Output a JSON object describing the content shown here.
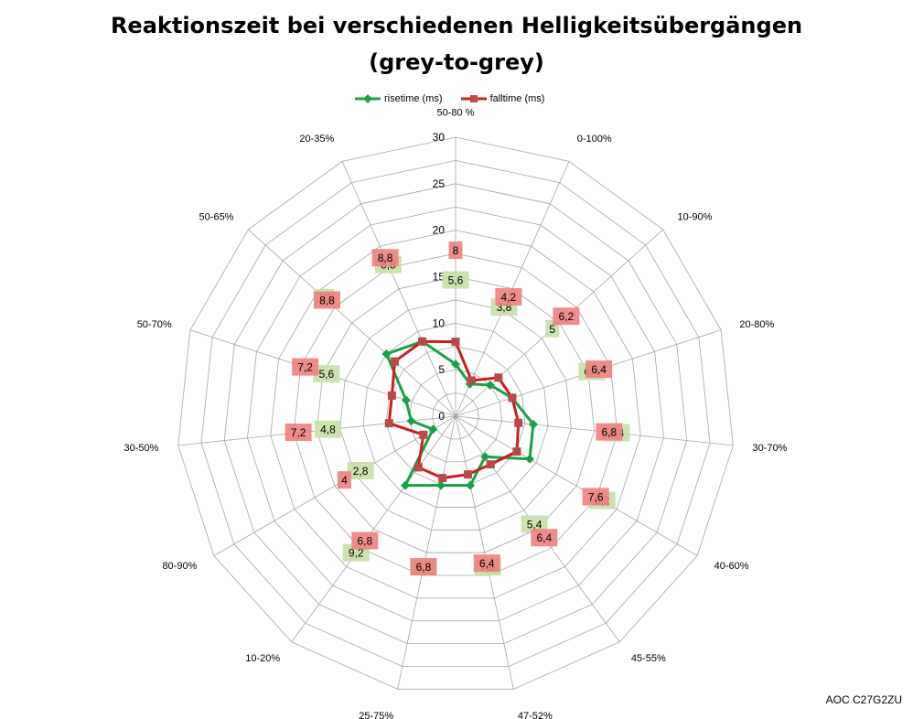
{
  "title_line1": "Reaktionszeit bei verschiedenen Helligkeitsübergängen",
  "title_line2": "(grey-to-grey)",
  "watermark": "AOC C27G2ZU",
  "colors": {
    "rise": "#1aa04a",
    "fall": "#cc1f1f",
    "rise_label_bg": "#c6e0a6",
    "fall_label_bg": "#f08080",
    "grid": "#a6a6a6"
  },
  "chart_data": {
    "type": "radar",
    "title": "Reaktionszeit bei verschiedenen Helligkeitsübergängen (grey-to-grey)",
    "categories": [
      "50-80 %",
      "0-100%",
      "10-90%",
      "20-80%",
      "30-70%",
      "40-60%",
      "45-55%",
      "47-52%",
      "25-75%",
      "10-20%",
      "80-90%",
      "30-50%",
      "50-70%",
      "50-65%",
      "20-35%"
    ],
    "rlim": [
      0,
      30
    ],
    "ticks": [
      "0",
      "5",
      "10",
      "15",
      "20",
      "25",
      "30"
    ],
    "legend_position": "top",
    "grid": true,
    "series": [
      {
        "name": "risetime (ms)",
        "values": [
          5.6,
          3.8,
          5,
          6.4,
          8.4,
          9.2,
          5.4,
          7.6,
          7.6,
          9.2,
          2.8,
          4.8,
          5.6,
          10,
          8.8
        ]
      },
      {
        "name": "falltime (ms)",
        "values": [
          8,
          4.2,
          6.2,
          6.4,
          6.8,
          7.6,
          6.4,
          6.4,
          6.8,
          6.8,
          4,
          7.2,
          7.2,
          8.8,
          8.8
        ]
      }
    ]
  }
}
